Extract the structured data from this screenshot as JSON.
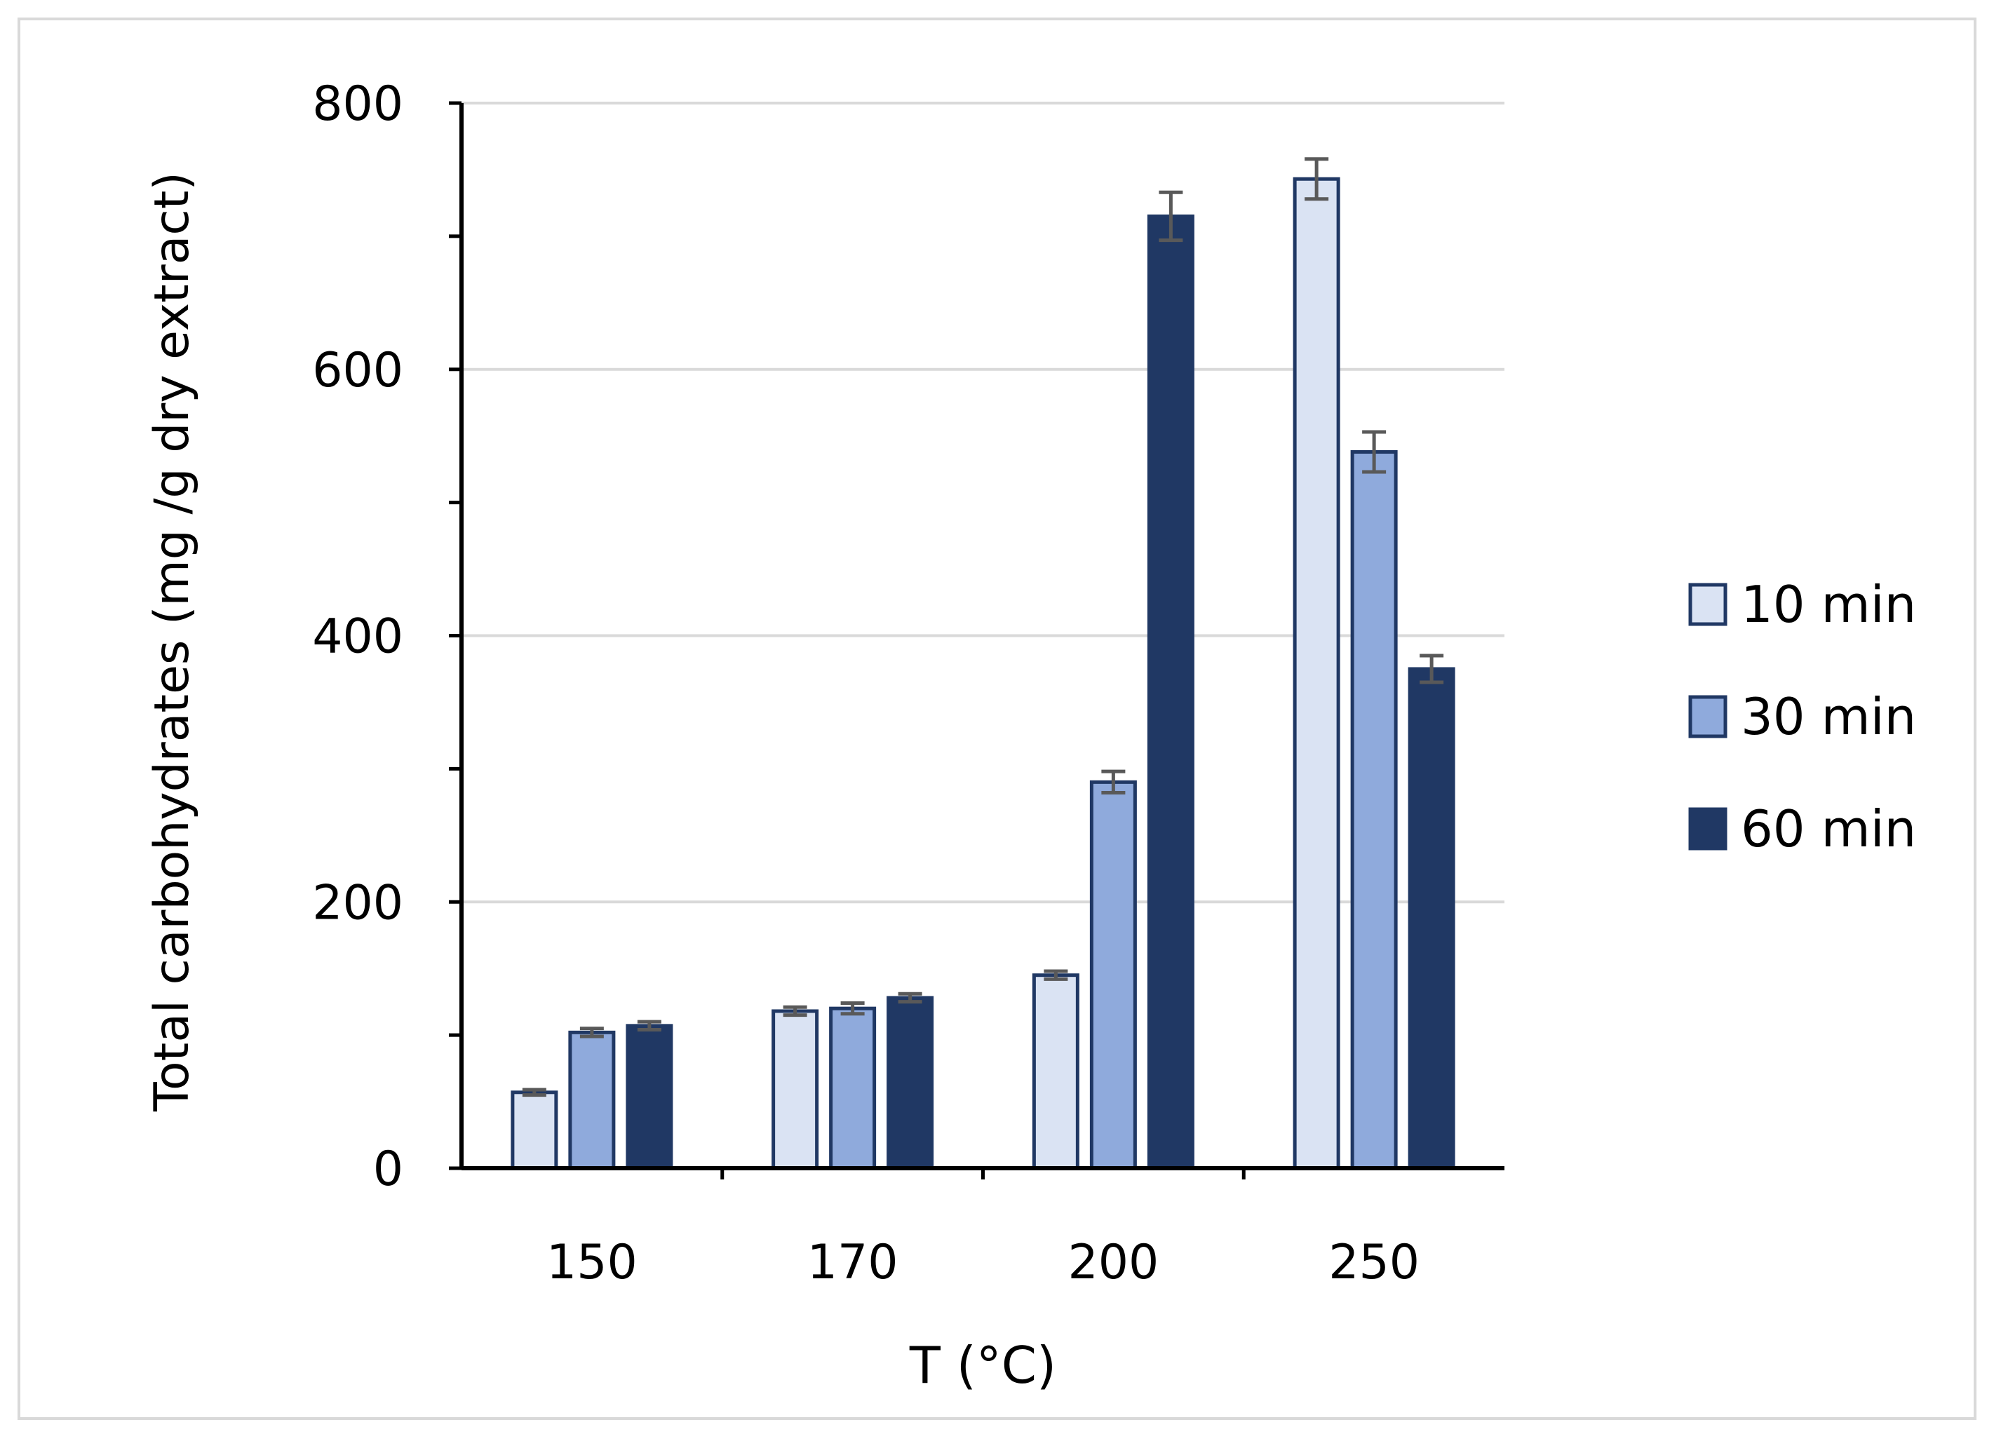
{
  "chart_data": {
    "type": "bar",
    "title": "",
    "xlabel": "T (°C)",
    "ylabel": "Total carbohydrates (mg /g dry extract)",
    "categories": [
      "150",
      "170",
      "200",
      "250"
    ],
    "ylim": [
      0,
      800
    ],
    "yticks": [
      0,
      200,
      400,
      600,
      800
    ],
    "minor_ticks": [
      100,
      300,
      500,
      700
    ],
    "grid": true,
    "legend_position": "right",
    "series": [
      {
        "name": "10 min",
        "color": "#dae3f3",
        "values": [
          57,
          118,
          145,
          743
        ],
        "errors": [
          2,
          3,
          3,
          15
        ]
      },
      {
        "name": "30 min",
        "color": "#8faadc",
        "values": [
          102,
          120,
          290,
          538
        ],
        "errors": [
          3,
          4,
          8,
          15
        ]
      },
      {
        "name": "60 min",
        "color": "#203864",
        "values": [
          107,
          128,
          715,
          375
        ],
        "errors": [
          3,
          3,
          18,
          10
        ]
      }
    ],
    "colors": {
      "bar_outline": "#203864",
      "error_bar": "#595959",
      "gridline": "#d9d9d9",
      "axis": "#000000",
      "frame": "#d9d9d9"
    }
  }
}
